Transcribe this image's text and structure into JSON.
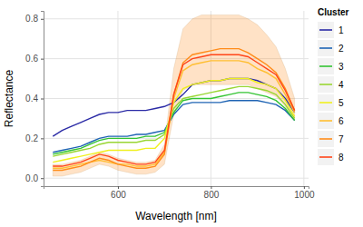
{
  "chart_data": {
    "type": "line",
    "x_label": "Wavelength [nm]",
    "y_label": "Reflectance",
    "legend_title": "Cluster",
    "legend": "right",
    "grid": true,
    "x": [
      460,
      480,
      500,
      520,
      540,
      560,
      580,
      600,
      620,
      640,
      660,
      680,
      700,
      720,
      740,
      760,
      780,
      800,
      820,
      840,
      860,
      880,
      900,
      920,
      940,
      960,
      980
    ],
    "xlim": [
      440,
      1010
    ],
    "xticks": [
      600,
      800,
      1000
    ],
    "ylim": [
      -0.04,
      0.84
    ],
    "yticks": [
      {
        "value": 0,
        "label": "0.0"
      },
      0.2,
      0.4,
      0.6,
      0.8
    ],
    "series": [
      {
        "name": "1",
        "color": "#2b2ba6",
        "values": [
          0.21,
          0.24,
          0.26,
          0.28,
          0.3,
          0.32,
          0.33,
          0.33,
          0.34,
          0.34,
          0.34,
          0.35,
          0.36,
          0.38,
          0.42,
          0.47,
          0.48,
          0.49,
          0.49,
          0.5,
          0.5,
          0.5,
          0.49,
          0.47,
          0.45,
          0.4,
          0.33
        ]
      },
      {
        "name": "2",
        "color": "#1f64b4",
        "values": [
          0.13,
          0.14,
          0.15,
          0.16,
          0.18,
          0.2,
          0.21,
          0.21,
          0.21,
          0.22,
          0.22,
          0.23,
          0.24,
          0.32,
          0.37,
          0.38,
          0.38,
          0.38,
          0.38,
          0.39,
          0.39,
          0.39,
          0.39,
          0.38,
          0.37,
          0.34,
          0.29
        ]
      },
      {
        "name": "3",
        "color": "#33c433",
        "values": [
          0.12,
          0.13,
          0.14,
          0.15,
          0.17,
          0.19,
          0.2,
          0.2,
          0.2,
          0.2,
          0.21,
          0.21,
          0.23,
          0.33,
          0.39,
          0.4,
          0.4,
          0.4,
          0.41,
          0.42,
          0.43,
          0.43,
          0.42,
          0.41,
          0.39,
          0.35,
          0.29
        ]
      },
      {
        "name": "4",
        "color": "#99d633",
        "values": [
          0.11,
          0.12,
          0.13,
          0.14,
          0.15,
          0.17,
          0.18,
          0.18,
          0.18,
          0.18,
          0.19,
          0.19,
          0.22,
          0.35,
          0.4,
          0.41,
          0.42,
          0.43,
          0.44,
          0.45,
          0.46,
          0.46,
          0.45,
          0.44,
          0.42,
          0.37,
          0.3
        ]
      },
      {
        "name": "5",
        "color": "#f0f01e",
        "values": [
          0.08,
          0.09,
          0.1,
          0.11,
          0.12,
          0.13,
          0.14,
          0.14,
          0.14,
          0.14,
          0.15,
          0.15,
          0.2,
          0.38,
          0.45,
          0.47,
          0.48,
          0.49,
          0.49,
          0.5,
          0.5,
          0.5,
          0.48,
          0.47,
          0.45,
          0.39,
          0.31
        ]
      },
      {
        "name": "6",
        "color": "#ffbf33",
        "values": [
          0.05,
          0.05,
          0.06,
          0.07,
          0.08,
          0.09,
          0.08,
          0.07,
          0.07,
          0.06,
          0.06,
          0.07,
          0.13,
          0.4,
          0.54,
          0.57,
          0.58,
          0.59,
          0.59,
          0.59,
          0.59,
          0.58,
          0.55,
          0.53,
          0.5,
          0.42,
          0.33
        ]
      },
      {
        "name": "7",
        "color": "#ff8c1a",
        "values": [
          0.04,
          0.04,
          0.05,
          0.06,
          0.08,
          0.1,
          0.09,
          0.07,
          0.06,
          0.05,
          0.05,
          0.06,
          0.12,
          0.42,
          0.58,
          0.62,
          0.63,
          0.64,
          0.65,
          0.65,
          0.65,
          0.63,
          0.6,
          0.57,
          0.53,
          0.45,
          0.34
        ],
        "lower": [
          0.01,
          0.01,
          0.02,
          0.03,
          0.05,
          0.07,
          0.06,
          0.04,
          0.03,
          0.02,
          0.02,
          0.03,
          0.07,
          0.32,
          0.44,
          0.47,
          0.47,
          0.47,
          0.47,
          0.47,
          0.47,
          0.47,
          0.45,
          0.43,
          0.41,
          0.36,
          0.29
        ],
        "upper": [
          0.07,
          0.07,
          0.08,
          0.09,
          0.11,
          0.13,
          0.12,
          0.1,
          0.09,
          0.08,
          0.08,
          0.09,
          0.17,
          0.55,
          0.75,
          0.8,
          0.82,
          0.82,
          0.82,
          0.82,
          0.82,
          0.8,
          0.77,
          0.72,
          0.66,
          0.55,
          0.4
        ]
      },
      {
        "name": "8",
        "color": "#ff4519",
        "values": [
          0.06,
          0.06,
          0.07,
          0.08,
          0.1,
          0.12,
          0.11,
          0.09,
          0.08,
          0.07,
          0.07,
          0.08,
          0.14,
          0.42,
          0.57,
          0.6,
          0.61,
          0.62,
          0.62,
          0.62,
          0.62,
          0.61,
          0.58,
          0.55,
          0.52,
          0.44,
          0.34
        ]
      }
    ]
  }
}
